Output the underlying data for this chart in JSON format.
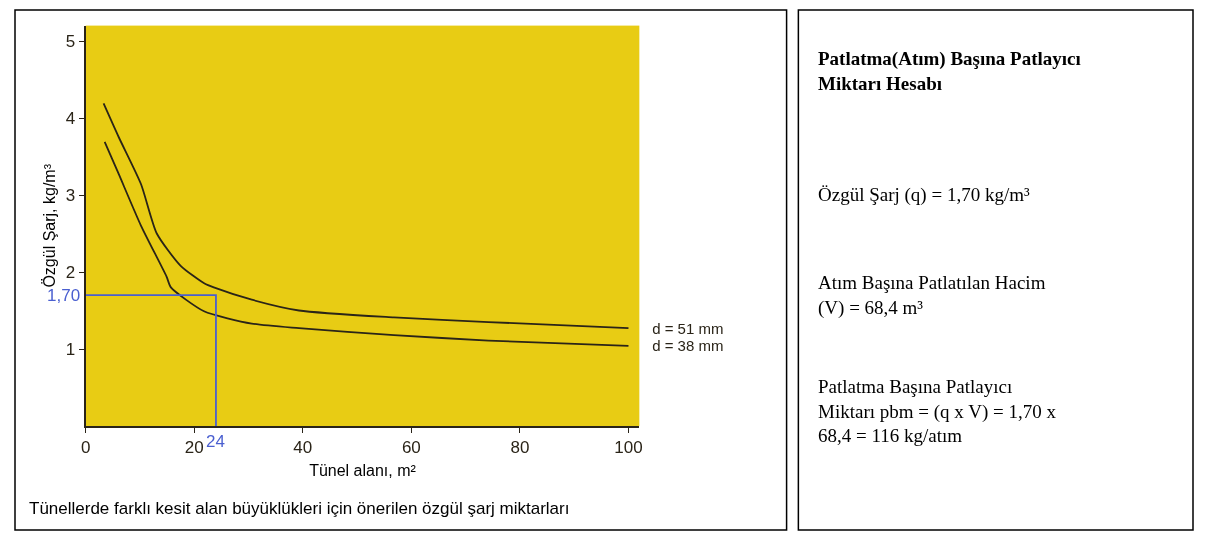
{
  "chart_data": {
    "type": "line",
    "xlabel": "Tünel alanı, m²",
    "ylabel": "Özgül Şarj, kg/m³",
    "xlim": [
      0,
      102
    ],
    "ylim": [
      0,
      5.2
    ],
    "xticks": [
      0,
      20,
      40,
      60,
      80,
      100
    ],
    "yticks": [
      1,
      2,
      3,
      4,
      5
    ],
    "grid": false,
    "legend": false,
    "marker": "none",
    "line_style": "solid",
    "series": [
      {
        "name": "d = 51 mm",
        "color": "#2a2418",
        "x": [
          3.3,
          6.1,
          10.2,
          13.1,
          17.5,
          21.9,
          23.6,
          30.6,
          39.3,
          56.8,
          74.2,
          100
        ],
        "values": [
          4.19,
          3.75,
          3.14,
          2.5,
          2.08,
          1.85,
          1.8,
          1.64,
          1.5,
          1.41,
          1.35,
          1.27
        ]
      },
      {
        "name": "d = 38 mm",
        "color": "#2a2418",
        "x": [
          3.5,
          6.1,
          10.2,
          14.9,
          15.7,
          21.8,
          30.6,
          39.3,
          56.8,
          74.2,
          100
        ],
        "values": [
          3.69,
          3.27,
          2.6,
          1.94,
          1.8,
          1.49,
          1.33,
          1.27,
          1.18,
          1.11,
          1.04
        ]
      },
      {
        "color": "#4a5fd0",
        "x": [
          24,
          24,
          0
        ],
        "values": [
          0,
          1.7,
          1.7
        ]
      }
    ],
    "annotations": [
      {
        "text": "1,70",
        "x": 0,
        "y": 1.7
      },
      {
        "text": "24",
        "x": 24,
        "y": 0
      },
      "Tünellerde farklı kesit alan büyüklükleri için önerilen özgül şarj miktarları",
      "Patlatma(Atım) Başına Patlayıcı Miktarı Hesabı",
      "Özgül Şarj (q) = 1,70 kg/m³",
      "Atım Başına Patlatılan Hacim (V) = 68,4 m³",
      "Patlatma Başına Patlayıcı Miktarı pbm = (q x V) = 1,70 x 68,4 = 116 kg/atım"
    ]
  }
}
